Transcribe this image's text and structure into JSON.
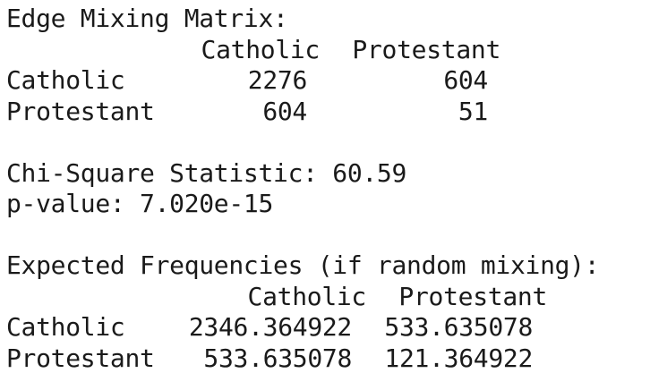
{
  "mixing": {
    "title": "Edge Mixing Matrix:",
    "columns": [
      "Catholic",
      "Protestant"
    ],
    "rows": [
      {
        "label": "Catholic",
        "values": [
          "2276",
          "604"
        ]
      },
      {
        "label": "Protestant",
        "values": [
          "604",
          "51"
        ]
      }
    ]
  },
  "stats": {
    "chi_square_line": "Chi-Square Statistic: 60.59",
    "p_value_line": "p-value: 7.020e-15"
  },
  "expected": {
    "title": "Expected Frequencies (if random mixing):",
    "columns": [
      "Catholic",
      "Protestant"
    ],
    "rows": [
      {
        "label": "Catholic",
        "values": [
          "2346.364922",
          "533.635078"
        ]
      },
      {
        "label": "Protestant",
        "values": [
          "533.635078",
          "121.364922"
        ]
      }
    ]
  }
}
